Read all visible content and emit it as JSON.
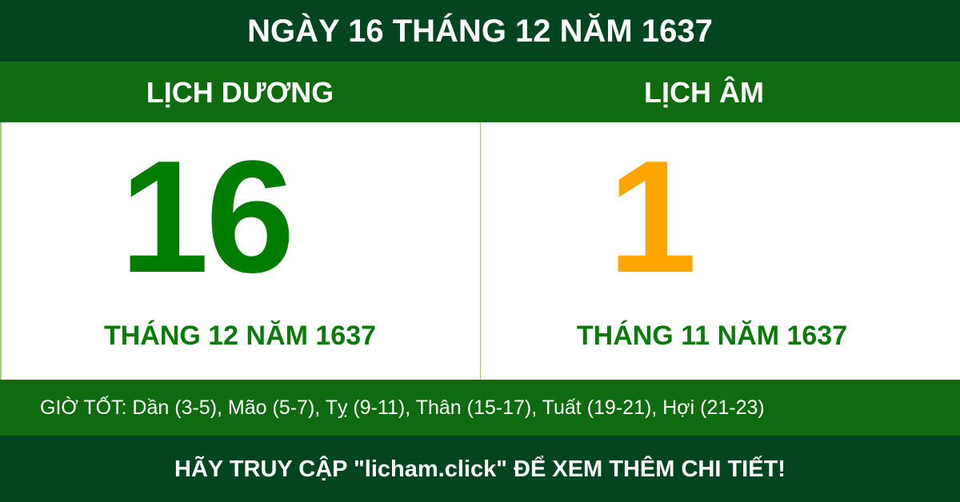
{
  "title": "NGÀY 16 THÁNG 12 NĂM 1637",
  "solar": {
    "heading": "LỊCH DƯƠNG",
    "day": "16",
    "month_year": "THÁNG 12 NĂM 1637"
  },
  "lunar": {
    "heading": "LỊCH ÂM",
    "day": "1",
    "month_year": "THÁNG 11 NĂM 1637"
  },
  "good_hours": "GIỜ TỐT: Dần (3-5), Mão (5-7), Tỵ (9-11), Thân (15-17), Tuất (19-21), Hợi (21-23)",
  "footer": "HÃY TRUY CẬP \"licham.click\" ĐỂ XEM THÊM CHI TIẾT!",
  "colors": {
    "dark_green": "#034521",
    "band_green": "#0f6b10",
    "solar_number": "#007c00",
    "lunar_number": "#ffa500"
  }
}
